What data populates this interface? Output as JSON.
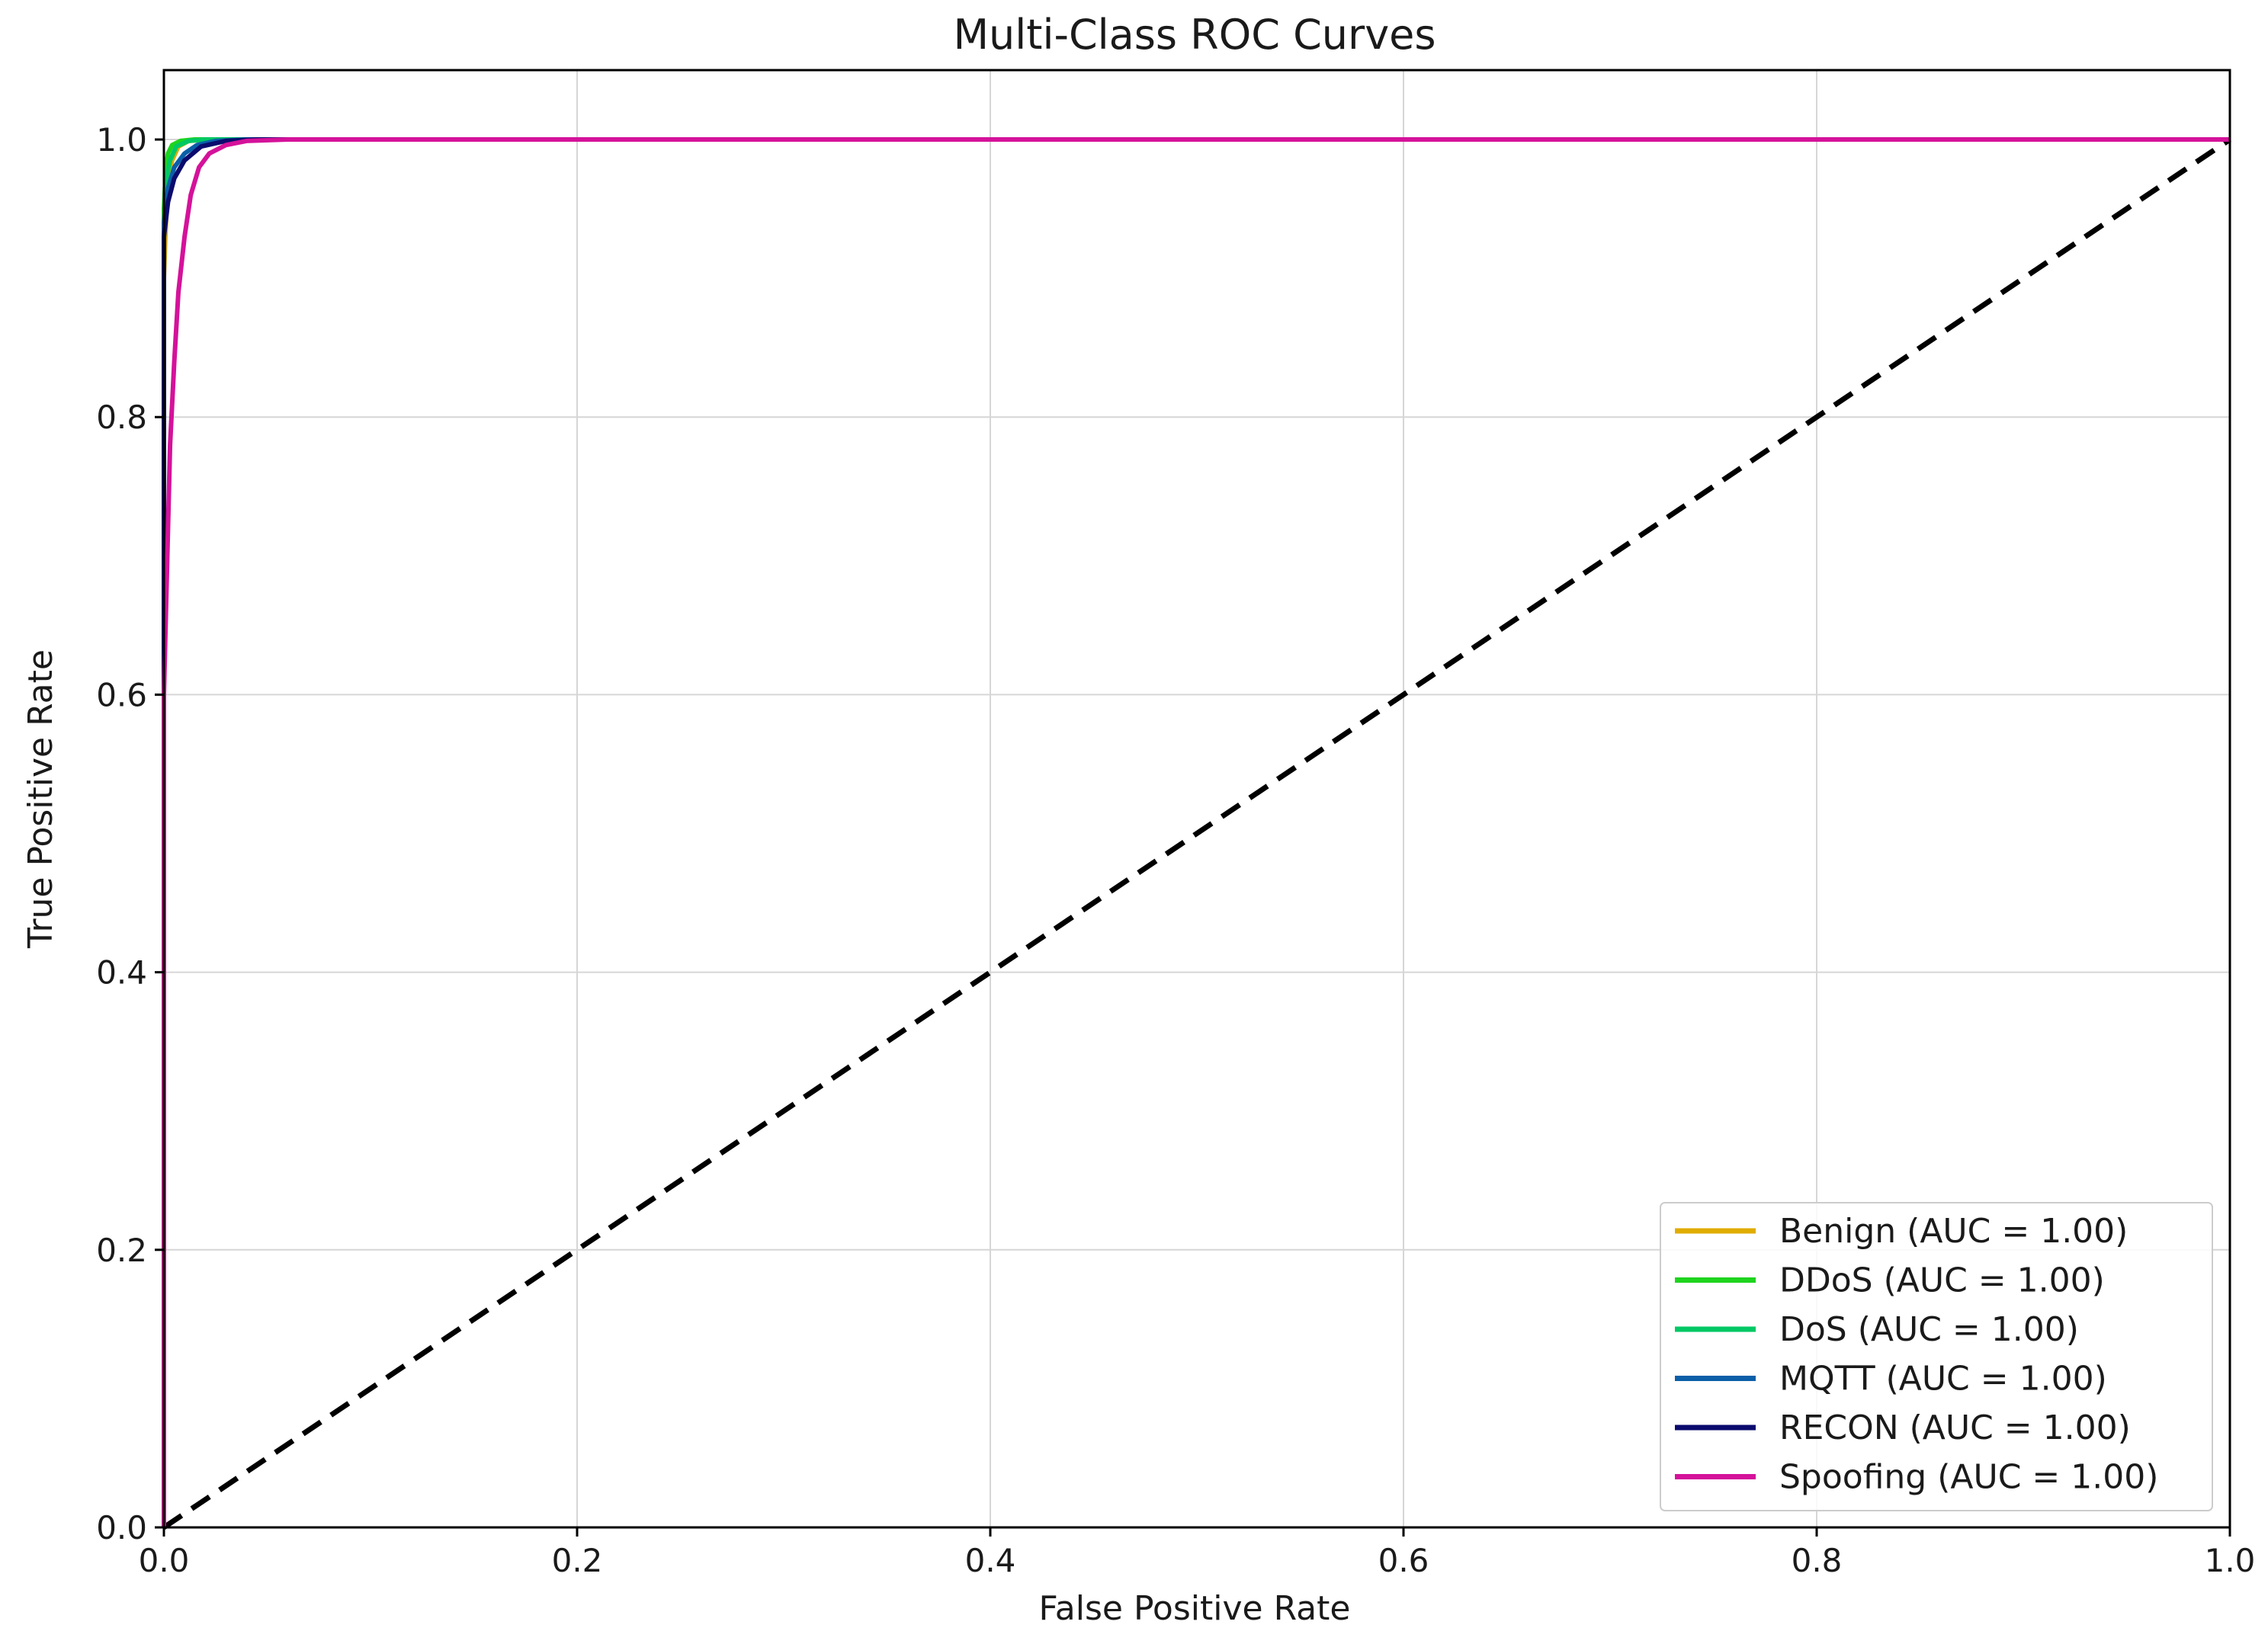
{
  "chart_data": {
    "type": "line",
    "title": "Multi-Class ROC Curves",
    "xlabel": "False Positive Rate",
    "ylabel": "True Positive Rate",
    "xlim": [
      0.0,
      1.0
    ],
    "ylim": [
      0.0,
      1.05
    ],
    "xticks": [
      "0.0",
      "0.2",
      "0.4",
      "0.6",
      "0.8",
      "1.0"
    ],
    "yticks": [
      "0.0",
      "0.2",
      "0.4",
      "0.6",
      "0.8",
      "1.0"
    ],
    "grid": true,
    "legend_position": "lower-right",
    "series": [
      {
        "name": "Benign (AUC = 1.00)",
        "color": "#e0ac00",
        "x": [
          0,
          0,
          0.001,
          0.002,
          0.004,
          0.007,
          0.012,
          0.02,
          0.05,
          1.0
        ],
        "y": [
          0,
          0.9,
          0.94,
          0.97,
          0.985,
          0.995,
          0.999,
          1.0,
          1.0,
          1.0
        ]
      },
      {
        "name": "DDoS (AUC = 1.00)",
        "color": "#1ed41e",
        "x": [
          0,
          0,
          0.001,
          0.002,
          0.004,
          0.008,
          0.015,
          1.0
        ],
        "y": [
          0,
          0.95,
          0.98,
          0.99,
          0.996,
          0.999,
          1.0,
          1.0
        ]
      },
      {
        "name": "DoS (AUC = 1.00)",
        "color": "#00c864",
        "x": [
          0,
          0,
          0.001,
          0.003,
          0.006,
          0.012,
          0.02,
          1.0
        ],
        "y": [
          0,
          0.93,
          0.97,
          0.985,
          0.995,
          0.999,
          1.0,
          1.0
        ]
      },
      {
        "name": "MQTT (AUC = 1.00)",
        "color": "#0a5fa8",
        "x": [
          0,
          0,
          0.002,
          0.005,
          0.01,
          0.016,
          0.025,
          0.04,
          1.0
        ],
        "y": [
          0,
          0.94,
          0.965,
          0.98,
          0.99,
          0.996,
          0.999,
          1.0,
          1.0
        ]
      },
      {
        "name": "RECON (AUC = 1.00)",
        "color": "#0b0b6e",
        "x": [
          0,
          0,
          0.002,
          0.005,
          0.01,
          0.018,
          0.03,
          0.045,
          1.0
        ],
        "y": [
          0,
          0.93,
          0.955,
          0.972,
          0.985,
          0.995,
          0.999,
          1.0,
          1.0
        ]
      },
      {
        "name": "Spoofing (AUC = 1.00)",
        "color": "#d4129a",
        "x": [
          0,
          0,
          0.001,
          0.002,
          0.003,
          0.005,
          0.007,
          0.01,
          0.013,
          0.017,
          0.022,
          0.03,
          0.04,
          0.06,
          1.0
        ],
        "y": [
          0,
          0.6,
          0.66,
          0.72,
          0.78,
          0.84,
          0.89,
          0.93,
          0.96,
          0.98,
          0.99,
          0.996,
          0.999,
          1.0,
          1.0
        ]
      }
    ],
    "reference_line": {
      "x": [
        0,
        1
      ],
      "y": [
        0,
        1
      ],
      "color": "#000000",
      "style": "dashed"
    }
  }
}
